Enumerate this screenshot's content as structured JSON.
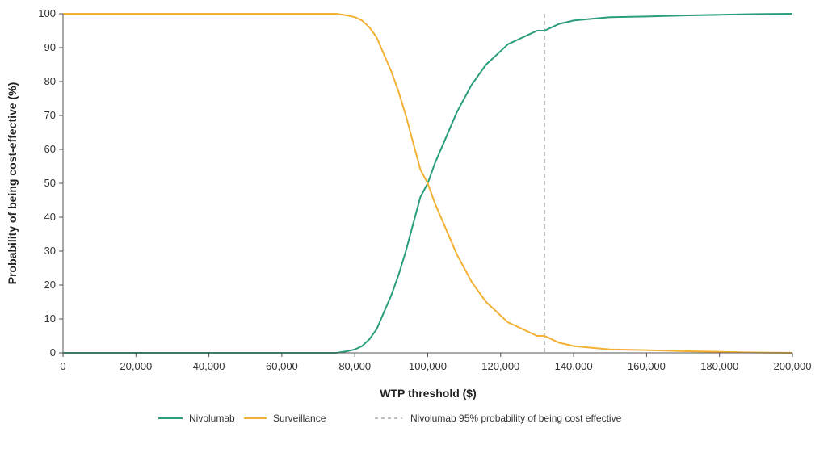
{
  "chart_data": {
    "type": "line",
    "xlabel": "WTP threshold ($)",
    "ylabel": "Probability of  being cost-effective (%)",
    "xlim": [
      0,
      200000
    ],
    "ylim": [
      0,
      100
    ],
    "x_ticks": [
      "0",
      "20,000",
      "40,000",
      "60,000",
      "80,000",
      "100,000",
      "120,000",
      "140,000",
      "160,000",
      "180,000",
      "200,000"
    ],
    "y_ticks": [
      "0",
      "10",
      "20",
      "30",
      "40",
      "50",
      "60",
      "70",
      "80",
      "90",
      "100"
    ],
    "grid": false,
    "legend_position": "bottom-center",
    "series": [
      {
        "name": "Nivolumab",
        "color": "#2a9d7c",
        "points": [
          [
            0,
            0
          ],
          [
            75000,
            0
          ],
          [
            78000,
            0.5
          ],
          [
            80000,
            1
          ],
          [
            82000,
            2
          ],
          [
            84000,
            4
          ],
          [
            86000,
            7
          ],
          [
            88000,
            12
          ],
          [
            90000,
            17
          ],
          [
            92000,
            23
          ],
          [
            94000,
            30
          ],
          [
            96000,
            38
          ],
          [
            98000,
            46
          ],
          [
            100000,
            50
          ],
          [
            102000,
            56
          ],
          [
            104000,
            61
          ],
          [
            106000,
            66
          ],
          [
            108000,
            71
          ],
          [
            110000,
            75
          ],
          [
            112000,
            79
          ],
          [
            114000,
            82
          ],
          [
            116000,
            85
          ],
          [
            118000,
            87
          ],
          [
            120000,
            89
          ],
          [
            122000,
            91
          ],
          [
            124000,
            92
          ],
          [
            126000,
            93
          ],
          [
            128000,
            94
          ],
          [
            130000,
            95
          ],
          [
            132000,
            95
          ],
          [
            134000,
            96
          ],
          [
            136000,
            97
          ],
          [
            138000,
            97.5
          ],
          [
            140000,
            98
          ],
          [
            145000,
            98.5
          ],
          [
            150000,
            99
          ],
          [
            160000,
            99.2
          ],
          [
            170000,
            99.5
          ],
          [
            180000,
            99.7
          ],
          [
            190000,
            99.9
          ],
          [
            200000,
            100
          ]
        ]
      },
      {
        "name": "Surveillance",
        "color": "#f2b134",
        "points": [
          [
            0,
            100
          ],
          [
            75000,
            100
          ],
          [
            78000,
            99.5
          ],
          [
            80000,
            99
          ],
          [
            82000,
            98
          ],
          [
            84000,
            96
          ],
          [
            86000,
            93
          ],
          [
            88000,
            88
          ],
          [
            90000,
            83
          ],
          [
            92000,
            77
          ],
          [
            94000,
            70
          ],
          [
            96000,
            62
          ],
          [
            98000,
            54
          ],
          [
            100000,
            50
          ],
          [
            102000,
            44
          ],
          [
            104000,
            39
          ],
          [
            106000,
            34
          ],
          [
            108000,
            29
          ],
          [
            110000,
            25
          ],
          [
            112000,
            21
          ],
          [
            114000,
            18
          ],
          [
            116000,
            15
          ],
          [
            118000,
            13
          ],
          [
            120000,
            11
          ],
          [
            122000,
            9
          ],
          [
            124000,
            8
          ],
          [
            126000,
            7
          ],
          [
            128000,
            6
          ],
          [
            130000,
            5
          ],
          [
            132000,
            5
          ],
          [
            134000,
            4
          ],
          [
            136000,
            3
          ],
          [
            138000,
            2.5
          ],
          [
            140000,
            2
          ],
          [
            145000,
            1.5
          ],
          [
            150000,
            1
          ],
          [
            160000,
            0.8
          ],
          [
            170000,
            0.5
          ],
          [
            180000,
            0.3
          ],
          [
            190000,
            0.1
          ],
          [
            200000,
            0
          ]
        ]
      }
    ],
    "reference_line": {
      "name": "Nivolumab 95% probability of being cost effective",
      "x": 132000,
      "color": "#aaaaaa",
      "style": "dashed"
    }
  },
  "legend": {
    "items": [
      {
        "label": "Nivolumab",
        "color": "#2a9d7c",
        "style": "solid"
      },
      {
        "label": "Surveillance",
        "color": "#f2b134",
        "style": "solid"
      },
      {
        "label": "Nivolumab 95% probability of being cost effective",
        "color": "#aaaaaa",
        "style": "dashed"
      }
    ]
  }
}
